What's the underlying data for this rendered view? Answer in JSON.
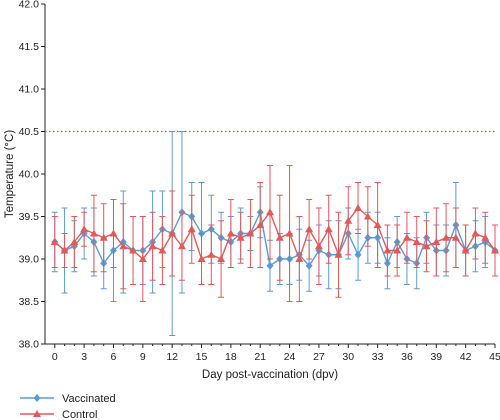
{
  "chart_data": {
    "type": "line",
    "xlabel": "Day post-vaccination (dpv)",
    "ylabel": "Temperature (°C)",
    "xlim": [
      -1,
      45
    ],
    "ylim": [
      38.0,
      42.0
    ],
    "x_ticks": [
      0,
      3,
      6,
      9,
      12,
      15,
      18,
      21,
      24,
      27,
      30,
      33,
      36,
      39,
      42,
      45
    ],
    "y_ticks": [
      38.0,
      38.5,
      39.0,
      39.5,
      40.0,
      40.5,
      41.0,
      41.5,
      42.0
    ],
    "x_tick_labels": [
      "0",
      "3",
      "6",
      "9",
      "12",
      "15",
      "18",
      "21",
      "24",
      "27",
      "30",
      "33",
      "36",
      "39",
      "42",
      "45"
    ],
    "y_tick_labels": [
      "38.0",
      "38.5",
      "39.0",
      "39.5",
      "40.0",
      "40.5",
      "41.0",
      "41.5",
      "42.0"
    ],
    "reference_line": {
      "y": 40.5,
      "color": "#e04040",
      "style": "dotted"
    },
    "x": [
      0,
      1,
      2,
      3,
      4,
      5,
      6,
      7,
      8,
      9,
      10,
      11,
      12,
      13,
      14,
      15,
      16,
      17,
      18,
      19,
      20,
      21,
      22,
      23,
      24,
      25,
      26,
      27,
      28,
      29,
      30,
      31,
      32,
      33,
      34,
      35,
      36,
      37,
      38,
      39,
      40,
      41,
      42,
      43,
      44,
      45
    ],
    "series": [
      {
        "name": "Vaccinated",
        "color": "#5b9bd5",
        "marker": "diamond",
        "values": [
          39.2,
          39.1,
          39.15,
          39.3,
          39.2,
          38.95,
          39.1,
          39.2,
          39.1,
          39.1,
          39.2,
          39.35,
          39.3,
          39.55,
          39.5,
          39.3,
          39.35,
          39.25,
          39.2,
          39.3,
          39.3,
          39.55,
          38.92,
          39.0,
          39.0,
          39.05,
          38.92,
          39.1,
          39.05,
          39.05,
          39.3,
          39.05,
          39.25,
          39.25,
          38.95,
          39.2,
          39.0,
          38.95,
          39.25,
          39.1,
          39.1,
          39.4,
          39.1,
          39.15,
          39.2,
          39.1
        ],
        "errors": [
          0.35,
          0.5,
          0.3,
          0.3,
          0.4,
          0.3,
          0.6,
          0.6,
          0.4,
          0.4,
          0.6,
          0.45,
          1.2,
          0.95,
          0.4,
          0.6,
          0.4,
          0.3,
          0.3,
          0.3,
          0.2,
          0.3,
          0.3,
          0.3,
          0.3,
          0.3,
          0.3,
          0.3,
          0.4,
          0.4,
          0.3,
          0.3,
          0.3,
          0.3,
          0.3,
          0.3,
          0.3,
          0.3,
          0.3,
          0.3,
          0.3,
          0.5,
          0.3,
          0.3,
          0.3,
          0.3
        ]
      },
      {
        "name": "Control",
        "color": "#e05a5a",
        "marker": "triangle",
        "values": [
          39.2,
          39.1,
          39.2,
          39.35,
          39.3,
          39.25,
          39.3,
          39.15,
          39.1,
          39.0,
          39.15,
          39.1,
          39.3,
          39.15,
          39.35,
          39.0,
          39.05,
          39.0,
          39.3,
          39.25,
          39.3,
          39.4,
          39.55,
          39.25,
          39.3,
          39.0,
          39.35,
          39.15,
          39.35,
          39.05,
          39.45,
          39.6,
          39.5,
          39.4,
          39.1,
          39.1,
          39.25,
          39.2,
          39.15,
          39.2,
          39.25,
          39.25,
          39.1,
          39.3,
          39.25,
          39.1
        ],
        "errors": [
          0.3,
          0.2,
          0.3,
          0.2,
          0.45,
          0.4,
          0.4,
          0.5,
          0.4,
          0.5,
          0.4,
          0.4,
          0.5,
          0.4,
          0.4,
          0.3,
          0.35,
          0.45,
          0.4,
          0.3,
          0.4,
          0.5,
          0.55,
          0.5,
          0.8,
          0.5,
          0.35,
          0.45,
          0.4,
          0.5,
          0.4,
          0.3,
          0.35,
          0.5,
          0.3,
          0.3,
          0.3,
          0.3,
          0.3,
          0.4,
          0.4,
          0.35,
          0.3,
          0.3,
          0.3,
          0.3
        ]
      }
    ],
    "legend": {
      "position": "bottom-left",
      "entries": [
        "Vaccinated",
        "Control"
      ]
    },
    "grid": false
  }
}
